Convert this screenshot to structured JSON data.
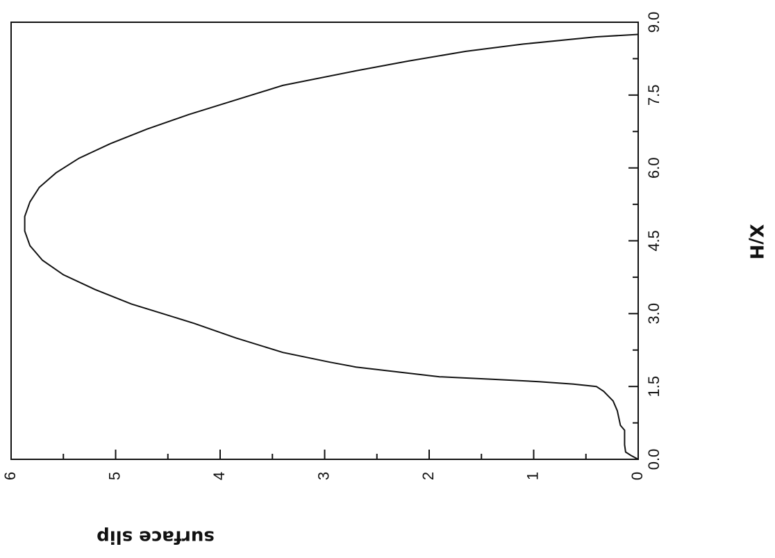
{
  "chart_data": {
    "type": "line",
    "orientation": "rotated-90",
    "xlabel": "X/H",
    "ylabel": "surface slip",
    "xlim": [
      0.0,
      9.0
    ],
    "ylim": [
      0,
      6
    ],
    "x_ticks": [
      "0.0",
      "1.5",
      "3.0",
      "4.5",
      "6.0",
      "7.5",
      "9.0"
    ],
    "y_ticks": [
      "0",
      "1",
      "2",
      "3",
      "4",
      "5",
      "6"
    ],
    "grid": false,
    "series": [
      {
        "x": [
          0.0,
          0.08,
          0.15,
          0.3,
          0.6,
          0.7,
          0.8,
          1.0,
          1.2,
          1.4,
          1.5,
          1.55,
          1.6,
          1.65,
          1.7,
          1.8,
          1.9,
          2.0,
          2.2,
          2.5,
          2.8,
          3.0,
          3.2,
          3.5,
          3.8,
          4.1,
          4.4,
          4.7,
          5.0,
          5.3,
          5.6,
          5.9,
          6.2,
          6.5,
          6.8,
          7.1,
          7.4,
          7.7,
          8.0,
          8.2,
          8.4,
          8.55,
          8.7,
          8.75
        ],
        "y": [
          0.0,
          0.07,
          0.12,
          0.13,
          0.13,
          0.17,
          0.18,
          0.2,
          0.24,
          0.33,
          0.4,
          0.62,
          0.95,
          1.4,
          1.9,
          2.3,
          2.7,
          2.95,
          3.4,
          3.85,
          4.25,
          4.55,
          4.85,
          5.2,
          5.5,
          5.7,
          5.82,
          5.87,
          5.87,
          5.82,
          5.73,
          5.57,
          5.35,
          5.05,
          4.7,
          4.3,
          3.85,
          3.4,
          2.7,
          2.2,
          1.65,
          1.1,
          0.4,
          0.0
        ]
      }
    ]
  }
}
